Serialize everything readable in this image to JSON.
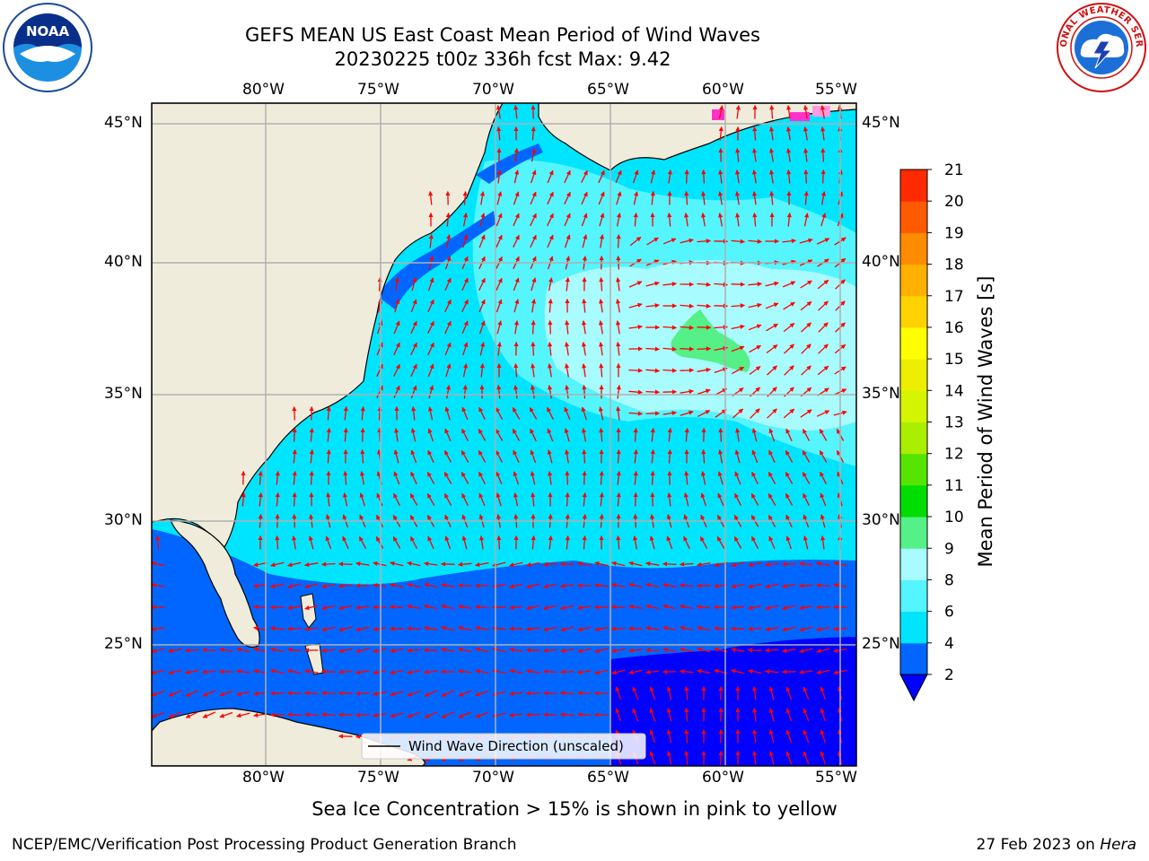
{
  "title": {
    "line1": "GEFS MEAN US East Coast Mean Period of Wind Waves",
    "line2": "20230225 t00z 336h fcst   Max: 9.42"
  },
  "logos": {
    "left": {
      "icon": "noaa-logo",
      "text": "NOAA"
    },
    "right": {
      "icon": "nws-logo",
      "text": "NATIONAL WEATHER SERVICE"
    }
  },
  "map": {
    "lon_labels": [
      "80°W",
      "75°W",
      "70°W",
      "65°W",
      "60°W",
      "55°W"
    ],
    "lat_labels": [
      "45°N",
      "40°N",
      "35°N",
      "30°N",
      "25°N"
    ],
    "legend_label": "Wind Wave Direction (unscaled)",
    "arrow_color": "#ff0000",
    "grid_color": "#b0b0b0",
    "land_color": "#efecdc"
  },
  "colorbar": {
    "label": "Mean Period of Wind Waves [s]",
    "ticks": [
      "2",
      "4",
      "6",
      "8",
      "9",
      "10",
      "11",
      "12",
      "13",
      "14",
      "15",
      "16",
      "17",
      "18",
      "19",
      "20",
      "21"
    ],
    "colors": [
      "#0066ff",
      "#00e5ff",
      "#55f5ff",
      "#a8fbff",
      "#55f088",
      "#00dd00",
      "#55e500",
      "#aaee00",
      "#d4f500",
      "#eeee00",
      "#ffff00",
      "#ffd200",
      "#ffb000",
      "#ff8c00",
      "#ff5a00",
      "#ff2a00"
    ],
    "under_color": "#0000ff"
  },
  "note": "Sea Ice Concentration > 15% is shown in pink to yellow",
  "footer": {
    "left": "NCEP/EMC/Verification Post Processing Product Generation Branch",
    "date": "27 Feb 2023 on ",
    "machine": "Hera"
  }
}
